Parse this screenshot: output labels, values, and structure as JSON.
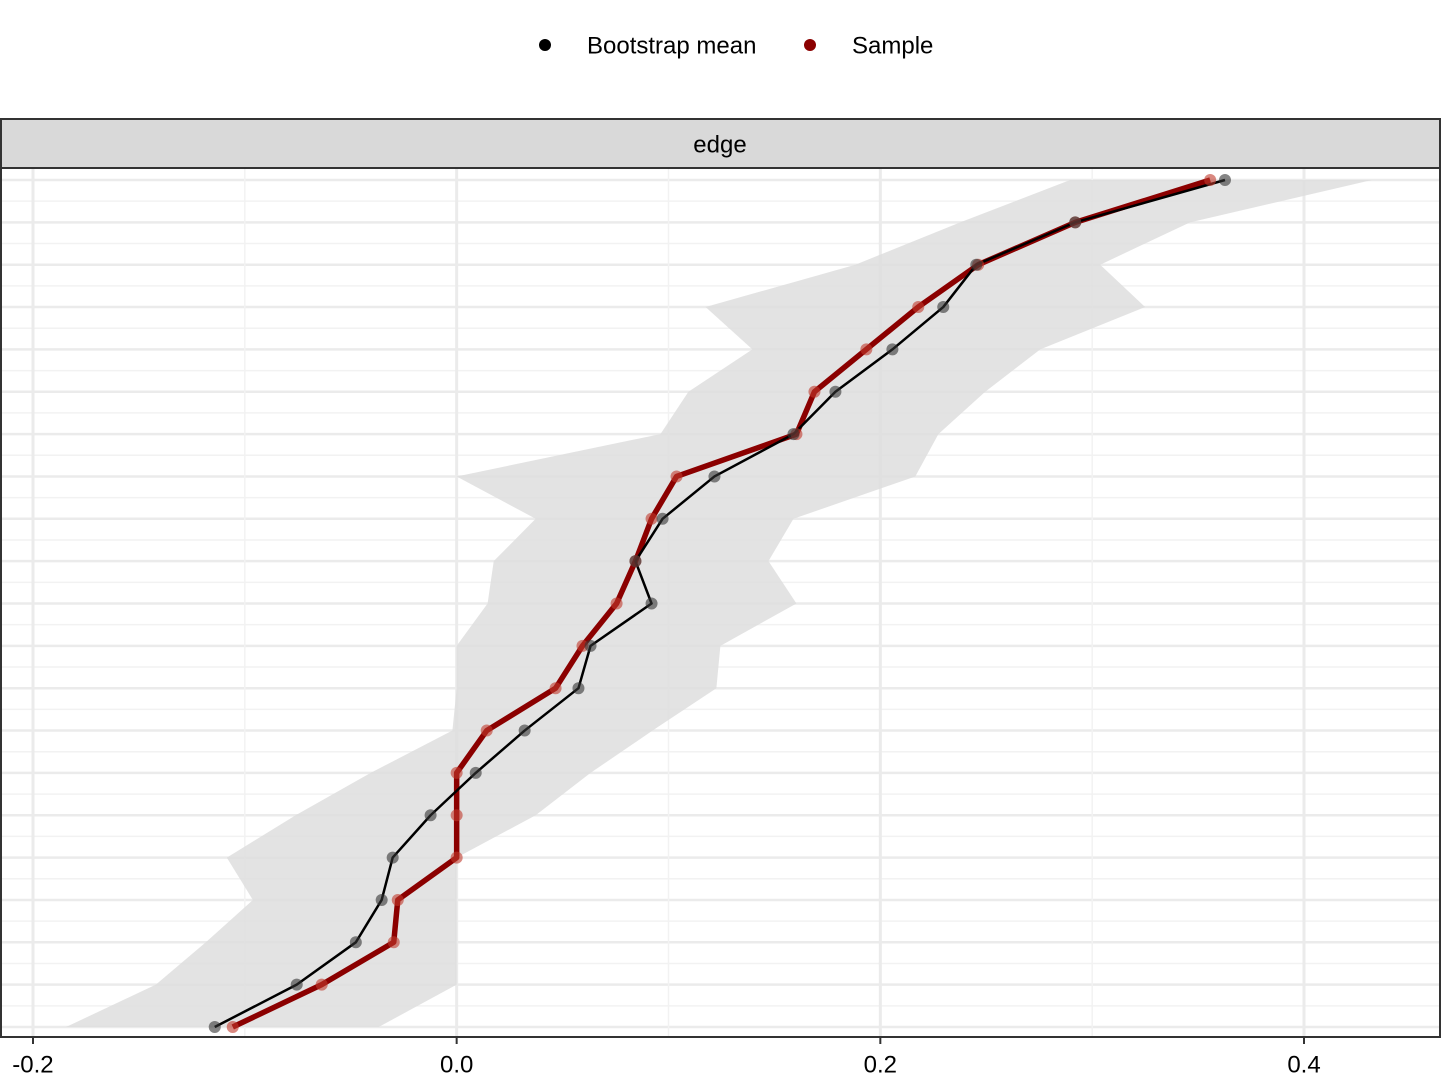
{
  "chart_data": {
    "type": "edge_ci",
    "strip": "edge",
    "categories": [
      null,
      null,
      null,
      null,
      null,
      null,
      null,
      null,
      null,
      null,
      null,
      null,
      null,
      null,
      null,
      null,
      null,
      null,
      null,
      null,
      null
    ],
    "series": [
      {
        "name": "Bootstrap mean",
        "color": "#000000",
        "values": [
          -0.1142,
          -0.0755,
          -0.0476,
          -0.0354,
          -0.0302,
          -0.0123,
          0.009,
          0.0321,
          0.0575,
          0.0632,
          0.092,
          0.0844,
          0.0972,
          0.1217,
          0.159,
          0.1788,
          0.2057,
          0.2297,
          0.2453,
          0.292,
          0.3627
        ]
      },
      {
        "name": "Sample",
        "color": "#8b0000",
        "values": [
          -0.1057,
          -0.0637,
          -0.0297,
          -0.0278,
          0,
          0,
          0,
          0.0142,
          0.0467,
          0.0594,
          0.0755,
          0.0844,
          0.092,
          0.1038,
          0.1604,
          0.1689,
          0.1934,
          0.2179,
          0.2462,
          0.292,
          0.3557
        ]
      }
    ],
    "ci": {
      "color": "#dedede",
      "lower": [
        -0.1844,
        -0.142,
        -0.1184,
        -0.0962,
        -0.1085,
        -0.076,
        -0.0406,
        -0.002,
        0,
        0,
        0.0146,
        0.0175,
        0.0373,
        0,
        0.0962,
        0.1094,
        0.1396,
        0.1175,
        0.1882,
        0.2377,
        0.2896
      ],
      "upper": [
        -0.0368,
        0,
        0,
        0,
        0,
        0.0373,
        0.0632,
        0.0925,
        0.1226,
        0.1245,
        0.1604,
        0.1472,
        0.159,
        0.2165,
        0.2274,
        0.2495,
        0.2755,
        0.325,
        0.3038,
        0.3462,
        0.4321
      ]
    },
    "xlim": [
      -0.2151,
      0.4642
    ],
    "xticks": [
      -0.2,
      {
        "value": 0,
        "label": "0.0"
      },
      0.2,
      0.4
    ],
    "x_minor_ticks": [
      -0.1,
      0.1,
      0.3
    ],
    "grid": true,
    "legend": "top"
  }
}
